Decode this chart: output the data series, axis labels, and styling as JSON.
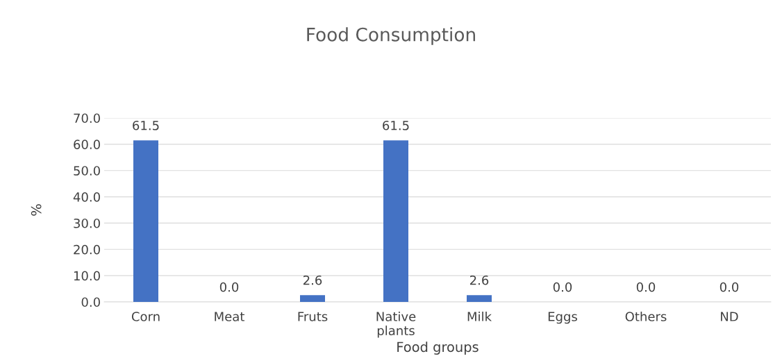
{
  "chart_data": {
    "type": "bar",
    "title": "Food Consumption",
    "xlabel": "Food groups",
    "ylabel": "%",
    "categories": [
      "Corn",
      "Meat",
      "Fruts",
      "Native\nplants",
      "Milk",
      "Eggs",
      "Others",
      "ND"
    ],
    "values": [
      61.5,
      0.0,
      2.6,
      61.5,
      2.6,
      0.0,
      0.0,
      0.0
    ],
    "value_labels": [
      "61.5",
      "0.0",
      "2.6",
      "61.5",
      "2.6",
      "0.0",
      "0.0",
      "0.0"
    ],
    "color": "#4472c4",
    "ylim": [
      0,
      70
    ],
    "yticks": [
      {
        "value": 0,
        "label": "0.0"
      },
      {
        "value": 10,
        "label": "10.0"
      },
      {
        "value": 20,
        "label": "20.0"
      },
      {
        "value": 30,
        "label": "30.0"
      },
      {
        "value": 40,
        "label": "40.0"
      },
      {
        "value": 50,
        "label": "50.0"
      },
      {
        "value": 60,
        "label": "60.0"
      },
      {
        "value": 70,
        "label": "70.0"
      }
    ],
    "grid": "y"
  }
}
